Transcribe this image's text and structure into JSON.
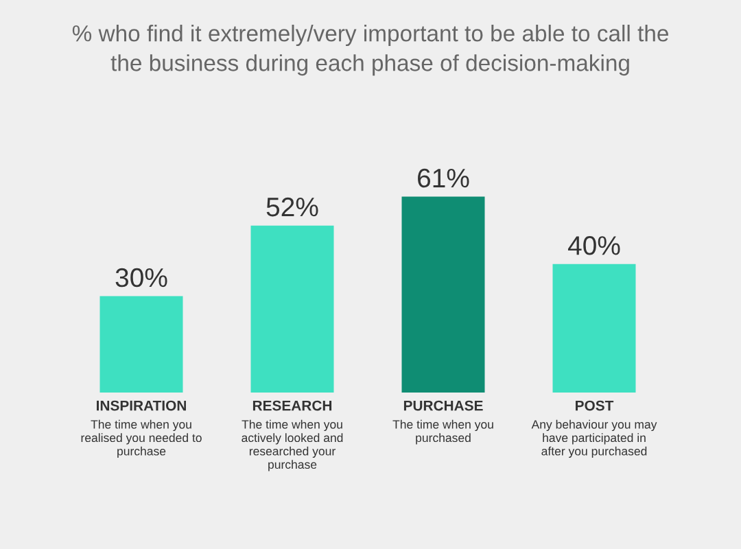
{
  "chart_data": {
    "type": "bar",
    "title": "% who find it extremely/very important to be able to call the\nthe business during each phase of decision-making",
    "categories": [
      "INSPIRATION",
      "RESEARCH",
      "PURCHASE",
      "POST"
    ],
    "values": [
      30,
      52,
      61,
      40
    ],
    "value_labels": [
      "30%",
      "52%",
      "61%",
      "40%"
    ],
    "colors": [
      "#3ee0c1",
      "#3ee0c1",
      "#0f8d73",
      "#3ee0c1"
    ],
    "grid": false,
    "annotations": [
      "The time when you\nrealised you needed to\npurchase",
      "The time when you\nactively looked and\nresearched your\npurchase",
      "The time when you\npurchased",
      "Any behaviour you may\nhave participated in\nafter you purchased"
    ]
  }
}
